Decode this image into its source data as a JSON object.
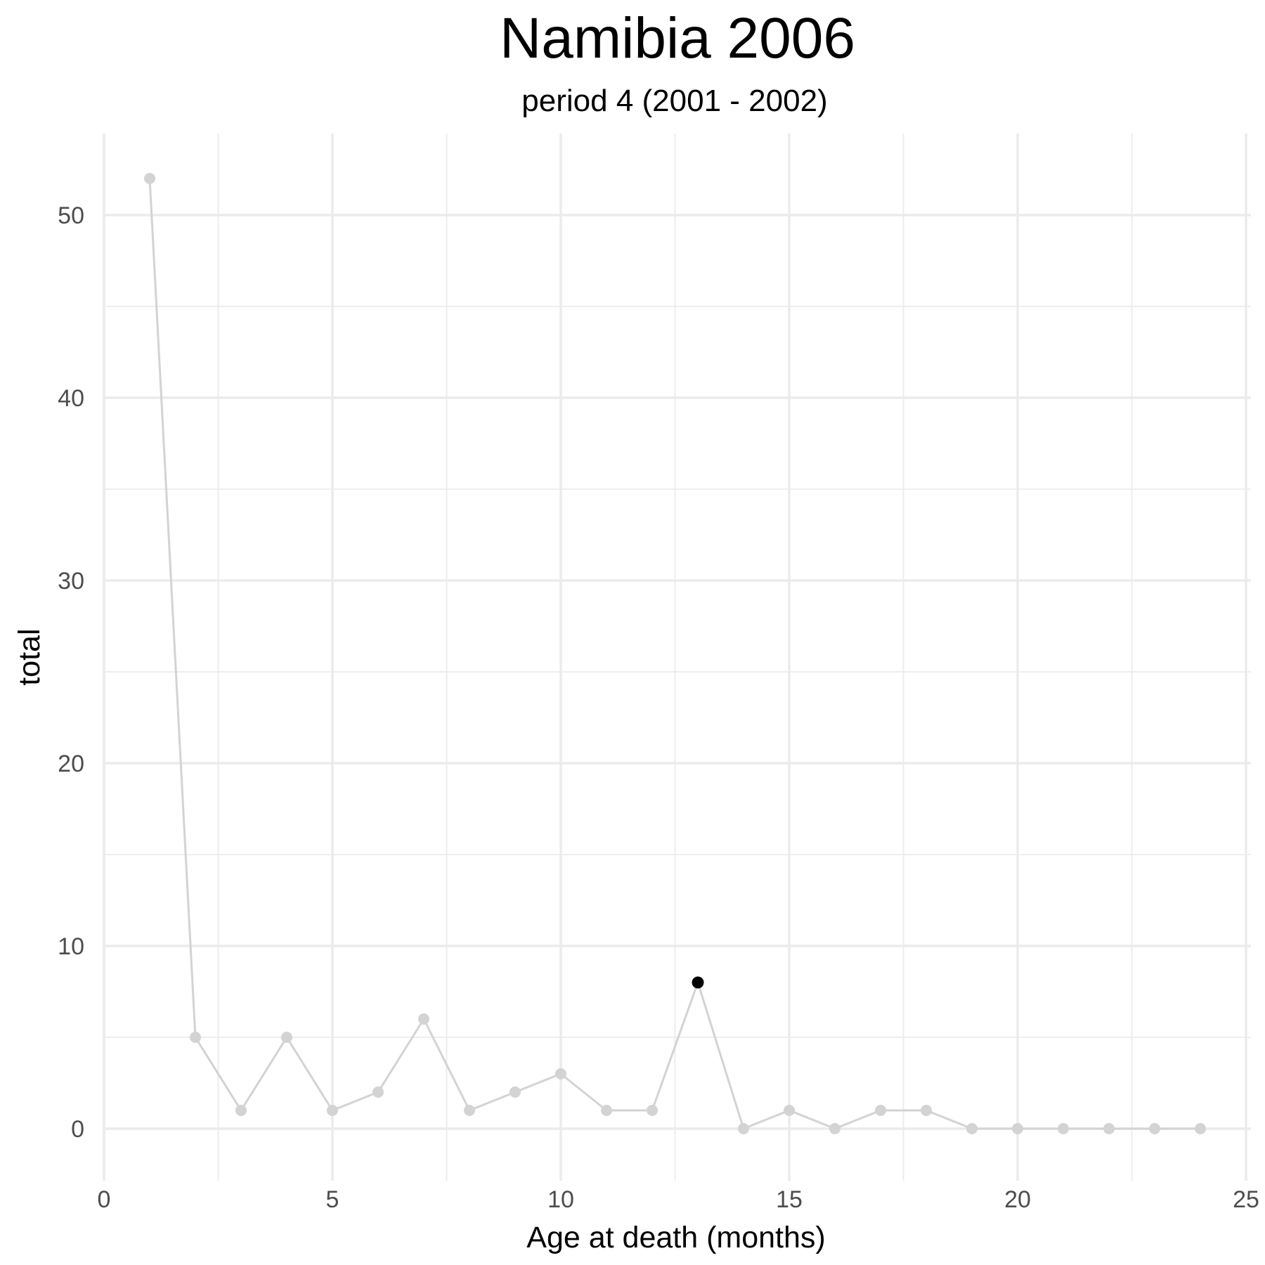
{
  "chart_data": {
    "type": "line",
    "title": "Namibia 2006",
    "subtitle": "period 4 (2001 - 2002)",
    "xlabel": "Age at death (months)",
    "ylabel": "total",
    "xlim": [
      0,
      25
    ],
    "ylim": [
      -2,
      55
    ],
    "x_ticks": [
      0,
      5,
      10,
      15,
      20,
      25
    ],
    "y_ticks": [
      0,
      10,
      20,
      30,
      40,
      50
    ],
    "x_minor_ticks": [
      2.5,
      7.5,
      12.5,
      17.5,
      22.5
    ],
    "y_minor_ticks": [
      5,
      15,
      25,
      35,
      45
    ],
    "grid": true,
    "legend": "none",
    "series": [
      {
        "x": [
          1,
          2,
          3,
          4,
          5,
          6,
          7,
          8,
          9,
          10,
          11,
          12,
          13,
          14,
          15,
          16,
          17,
          18,
          19,
          20,
          21,
          22,
          23,
          24
        ],
        "values": [
          52,
          5,
          1,
          5,
          1,
          2,
          6,
          1,
          2,
          3,
          1,
          1,
          8,
          0,
          1,
          0,
          1,
          1,
          0,
          0,
          0,
          0,
          0,
          0
        ],
        "color": "#d3d3d3"
      }
    ],
    "highlight": {
      "x": 13,
      "y": 8,
      "color": "#000000"
    }
  }
}
